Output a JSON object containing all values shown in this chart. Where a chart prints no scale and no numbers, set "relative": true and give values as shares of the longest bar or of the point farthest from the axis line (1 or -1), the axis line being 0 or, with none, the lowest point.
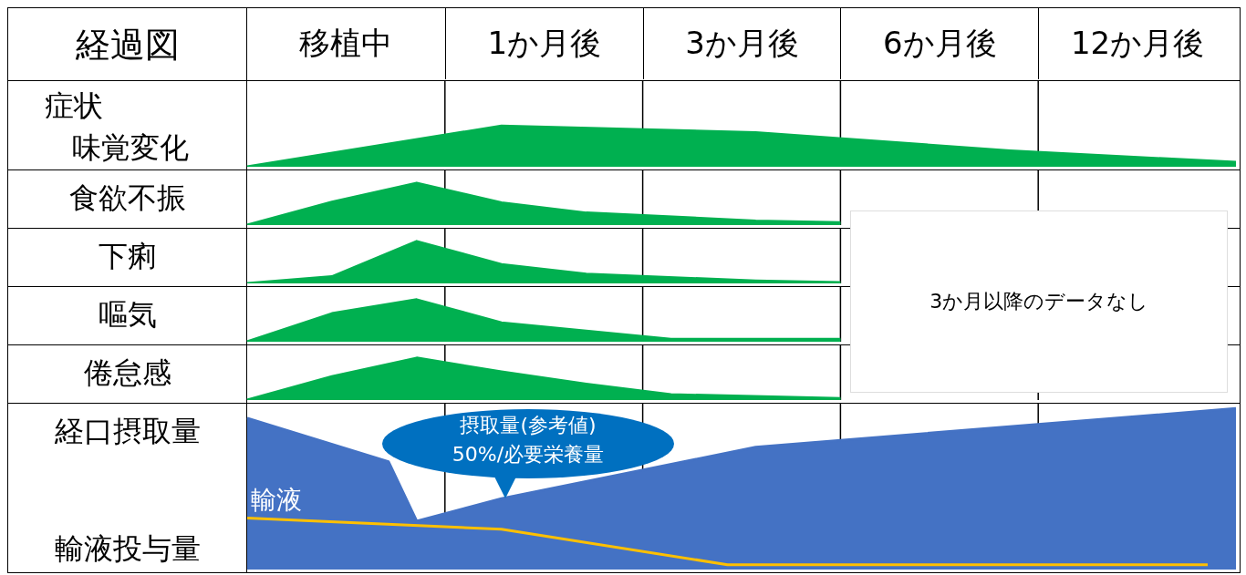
{
  "chart_data": [
    {
      "type": "other",
      "title": "経過図",
      "annotations": [
        "移植中",
        "1か月後",
        "3か月後",
        "6か月後",
        "12か月後"
      ]
    },
    {
      "type": "area",
      "subtitle": "症状",
      "ylabel": "味覚変化",
      "relative": true,
      "grid": "x",
      "categories": [
        null,
        null,
        null,
        null,
        null,
        null,
        null,
        null,
        null,
        null,
        null,
        null,
        null,
        null,
        null,
        null,
        null,
        null,
        null,
        null,
        null,
        null,
        null,
        null,
        null,
        null,
        null,
        null,
        null,
        null,
        null,
        null,
        null,
        null,
        null,
        null
      ],
      "series": [
        {
          "color": "#00b050",
          "values": [
            0,
            null,
            null,
            null,
            null,
            null,
            null,
            null,
            null,
            1,
            null,
            null,
            null,
            null,
            null,
            null,
            null,
            null,
            0.84,
            null,
            null,
            null,
            null,
            null,
            null,
            null,
            null,
            0.39,
            null,
            null,
            null,
            null,
            null,
            null,
            null,
            0.11
          ]
        }
      ]
    },
    {
      "type": "area",
      "ylabel": "食欲不振",
      "relative": true,
      "grid": "x",
      "annotations": [
        "3か月以降のデータなし"
      ],
      "categories": [
        null,
        null,
        null,
        null,
        null,
        null,
        null,
        null,
        null,
        null,
        null,
        null,
        null,
        null,
        null,
        null,
        null,
        null,
        null,
        null,
        null,
        null,
        null,
        null,
        null,
        null,
        null,
        null,
        null,
        null,
        null,
        null,
        null,
        null,
        null,
        null
      ],
      "series": [
        {
          "color": "#00b050",
          "values": [
            0,
            null,
            null,
            0.55,
            null,
            null,
            1,
            null,
            null,
            0.53,
            null,
            null,
            0.29,
            null,
            null,
            null,
            null,
            null,
            0.1,
            null,
            null,
            0.06,
            null,
            null,
            null,
            null,
            null,
            null,
            null,
            null,
            null,
            null,
            null,
            null,
            null,
            null
          ]
        }
      ]
    },
    {
      "type": "area",
      "ylabel": "下痢",
      "relative": true,
      "grid": "x",
      "categories": [
        null,
        null,
        null,
        null,
        null,
        null,
        null,
        null,
        null,
        null,
        null,
        null,
        null,
        null,
        null,
        null,
        null,
        null,
        null,
        null,
        null,
        null,
        null,
        null,
        null,
        null,
        null,
        null,
        null,
        null,
        null,
        null,
        null,
        null,
        null,
        null
      ],
      "series": [
        {
          "color": "#00b050",
          "values": [
            0,
            null,
            null,
            0.16,
            null,
            null,
            1,
            null,
            null,
            0.45,
            null,
            null,
            0.22,
            null,
            null,
            null,
            null,
            null,
            0.06,
            null,
            null,
            0.02,
            null,
            null,
            null,
            null,
            null,
            null,
            null,
            null,
            null,
            null,
            null,
            null,
            null,
            null
          ]
        }
      ]
    },
    {
      "type": "area",
      "ylabel": "嘔気",
      "relative": true,
      "grid": "x",
      "categories": [
        null,
        null,
        null,
        null,
        null,
        null,
        null,
        null,
        null,
        null,
        null,
        null,
        null,
        null,
        null,
        null,
        null,
        null,
        null,
        null,
        null,
        null,
        null,
        null,
        null,
        null,
        null,
        null,
        null,
        null,
        null,
        null,
        null,
        null,
        null,
        null
      ],
      "series": [
        {
          "color": "#00b050",
          "values": [
            0,
            null,
            null,
            0.67,
            null,
            null,
            1,
            null,
            null,
            0.45,
            null,
            null,
            null,
            null,
            null,
            0.06,
            null,
            null,
            null,
            null,
            null,
            0.06,
            null,
            null,
            null,
            null,
            null,
            null,
            null,
            null,
            null,
            null,
            null,
            null,
            null,
            null
          ]
        }
      ]
    },
    {
      "type": "area",
      "ylabel": "倦怠感",
      "relative": true,
      "grid": "x",
      "categories": [
        null,
        null,
        null,
        null,
        null,
        null,
        null,
        null,
        null,
        null,
        null,
        null,
        null,
        null,
        null,
        null,
        null,
        null,
        null,
        null,
        null,
        null,
        null,
        null,
        null,
        null,
        null,
        null,
        null,
        null,
        null,
        null,
        null,
        null,
        null,
        null
      ],
      "series": [
        {
          "color": "#00b050",
          "values": [
            0,
            null,
            null,
            0.56,
            null,
            null,
            1,
            null,
            null,
            0.67,
            null,
            null,
            0.38,
            null,
            null,
            0.13,
            null,
            null,
            null,
            null,
            null,
            0.04,
            null,
            null,
            null,
            null,
            null,
            null,
            null,
            null,
            null,
            null,
            null,
            null,
            null,
            null
          ]
        }
      ]
    },
    {
      "type": "area",
      "ylabel": "経口摂取量",
      "y2label": "輸液投与量",
      "relative": true,
      "grid": "x",
      "annotations": [
        "摂取量(参考値)\n50%/必要栄養量"
      ],
      "categories": [
        null,
        null,
        null,
        null,
        null,
        null,
        null,
        null,
        null,
        null,
        null,
        null,
        null,
        null,
        null,
        null,
        null,
        null,
        null,
        null,
        null,
        null,
        null,
        null,
        null,
        null,
        null,
        null,
        null,
        null,
        null,
        null,
        null,
        null,
        null,
        null
      ],
      "series": [
        {
          "color": "#4472c4",
          "values": [
            0.94,
            null,
            null,
            null,
            null,
            0.67,
            0.3,
            null,
            null,
            0.44,
            null,
            null,
            null,
            null,
            null,
            null,
            null,
            null,
            0.76,
            null,
            null,
            null,
            null,
            null,
            null,
            null,
            null,
            null,
            null,
            null,
            null,
            null,
            null,
            null,
            null,
            1
          ]
        },
        {
          "type": "line",
          "name": "輸液",
          "color": "#ffc000",
          "values": [
            0.32,
            null,
            null,
            null,
            null,
            null,
            null,
            null,
            null,
            0.25,
            null,
            null,
            null,
            null,
            null,
            null,
            null,
            0.03,
            null,
            null,
            null,
            null,
            null,
            null,
            null,
            null,
            null,
            null,
            null,
            null,
            null,
            null,
            null,
            null,
            0.03,
            null
          ]
        }
      ]
    }
  ]
}
